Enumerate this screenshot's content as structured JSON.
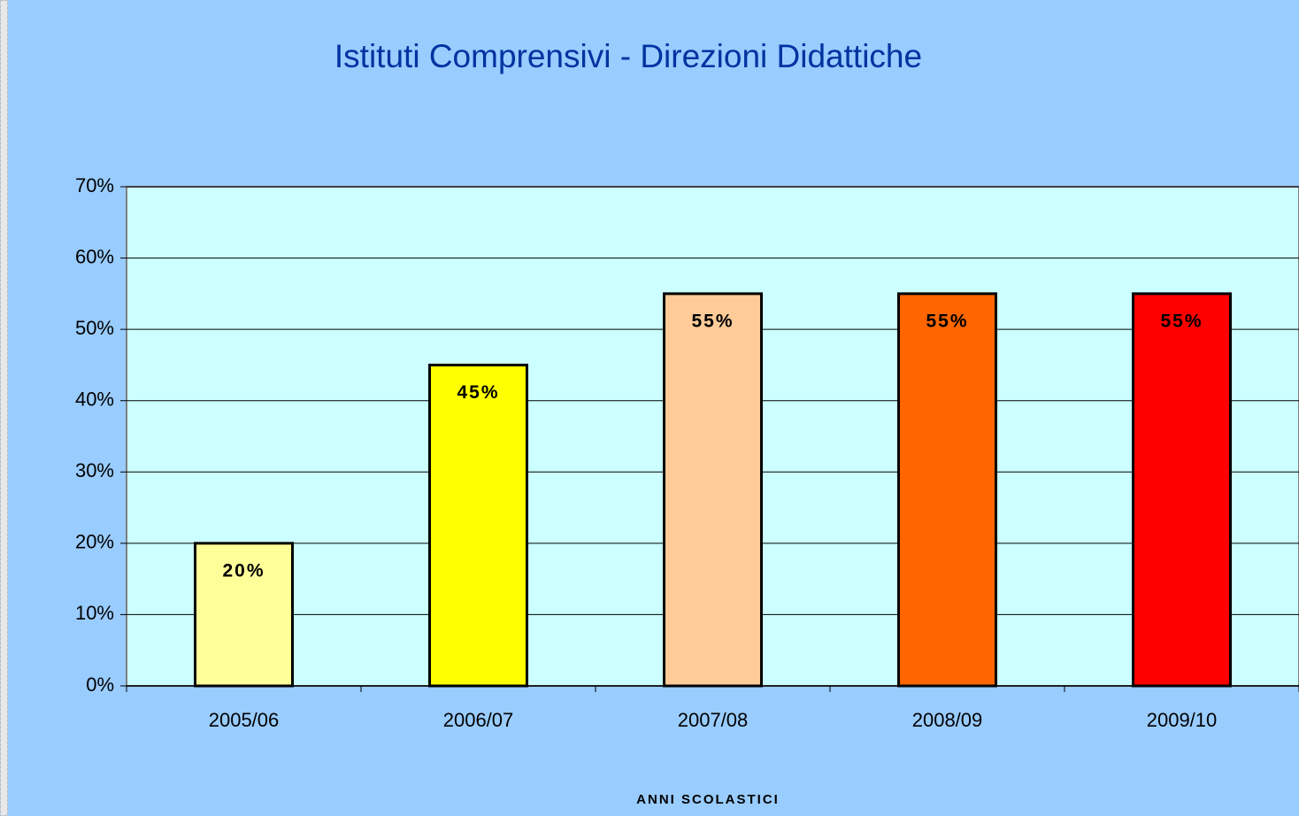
{
  "chart_data": {
    "type": "bar",
    "title": "Istituti Comprensivi  -  Direzioni Didattiche",
    "x_label": "ANNI SCOLASTICI",
    "categories": [
      "2005/06",
      "2006/07",
      "2007/08",
      "2008/09",
      "2009/10"
    ],
    "values": [
      20,
      45,
      55,
      55,
      55
    ],
    "value_labels": [
      "20%",
      "45%",
      "55%",
      "55%",
      "55%"
    ],
    "colors": [
      "#ffff99",
      "#ffff00",
      "#ffcc99",
      "#ff6600",
      "#ff0000"
    ],
    "ylim": [
      0,
      70
    ],
    "yticks": [
      {
        "value": 0,
        "label": "0%"
      },
      {
        "value": 10,
        "label": "10%"
      },
      {
        "value": 20,
        "label": "20%"
      },
      {
        "value": 30,
        "label": "30%"
      },
      {
        "value": 40,
        "label": "40%"
      },
      {
        "value": 50,
        "label": "50%"
      },
      {
        "value": 60,
        "label": "60%"
      },
      {
        "value": 70,
        "label": "70%"
      }
    ],
    "grid": true
  }
}
